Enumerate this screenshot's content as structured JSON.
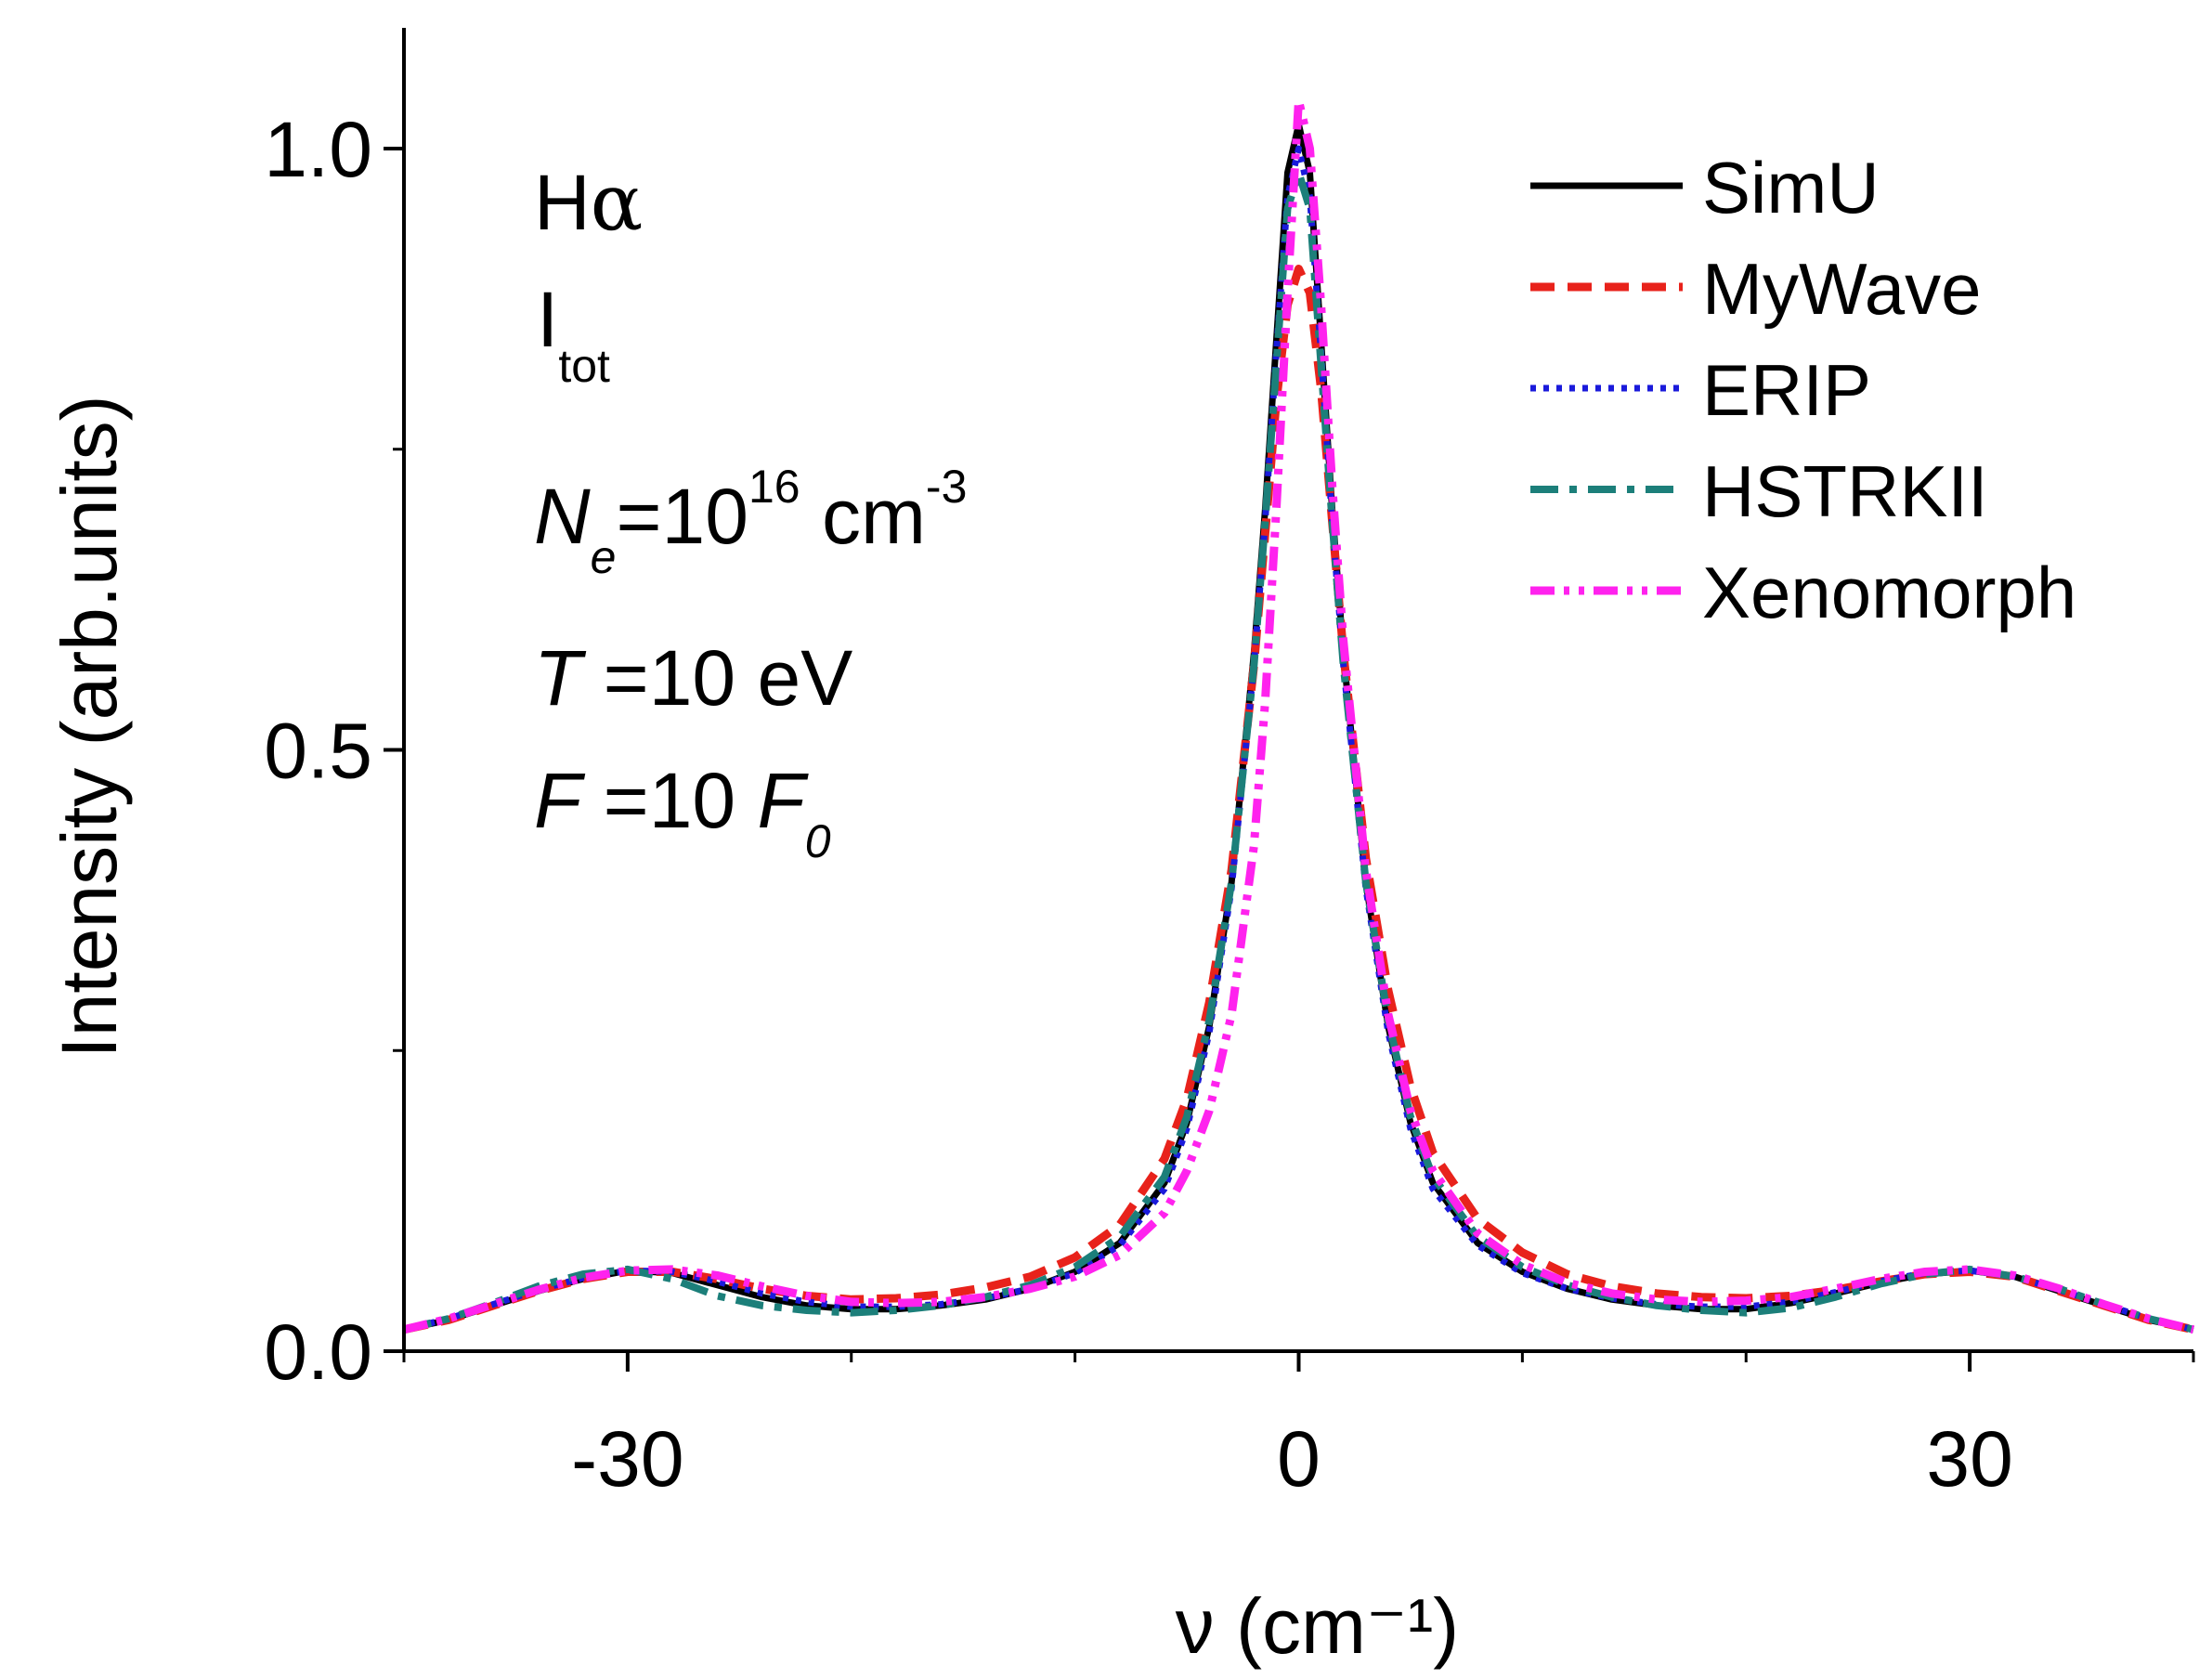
{
  "chart_data": {
    "type": "line",
    "xlabel": "ν (cm⁻¹)",
    "ylabel": "Intensity (arb.units)",
    "xlim": [
      -40,
      40
    ],
    "ylim": [
      0,
      1.1
    ],
    "xticks": [
      -30,
      0,
      30
    ],
    "xtick_labels": [
      "-30",
      "0",
      "30"
    ],
    "yticks": [
      0.0,
      0.5,
      1.0
    ],
    "ytick_labels": [
      "0.0",
      "0.5",
      "1.0"
    ],
    "legend_position": "top-right",
    "series": [
      {
        "name": "SimU",
        "color": "#000000",
        "style": "solid",
        "x": [
          -40,
          -38,
          -36,
          -34,
          -32,
          -30,
          -28,
          -26,
          -24,
          -22,
          -20,
          -18,
          -16,
          -14,
          -12,
          -10,
          -8,
          -6,
          -5,
          -4,
          -3,
          -2,
          -1.5,
          -1,
          -0.5,
          0,
          0.5,
          1,
          1.5,
          2,
          3,
          4,
          5,
          6,
          8,
          10,
          12,
          14,
          16,
          18,
          20,
          22,
          24,
          26,
          28,
          30,
          32,
          34,
          36,
          38,
          40
        ],
        "y": [
          0.018,
          0.026,
          0.038,
          0.05,
          0.06,
          0.067,
          0.065,
          0.055,
          0.045,
          0.038,
          0.035,
          0.035,
          0.038,
          0.043,
          0.052,
          0.066,
          0.09,
          0.14,
          0.19,
          0.27,
          0.39,
          0.58,
          0.7,
          0.84,
          0.98,
          1.02,
          0.98,
          0.84,
          0.7,
          0.58,
          0.39,
          0.27,
          0.19,
          0.14,
          0.09,
          0.066,
          0.052,
          0.043,
          0.038,
          0.035,
          0.035,
          0.04,
          0.048,
          0.057,
          0.064,
          0.067,
          0.062,
          0.05,
          0.038,
          0.026,
          0.018
        ]
      },
      {
        "name": "MyWave",
        "color": "#e8221b",
        "style": "dashed",
        "x": [
          -40,
          -38,
          -36,
          -34,
          -32,
          -30,
          -28,
          -26,
          -24,
          -22,
          -20,
          -18,
          -16,
          -14,
          -12,
          -10,
          -8,
          -6,
          -5,
          -4,
          -3,
          -2,
          -1.5,
          -1,
          -0.5,
          0,
          0.5,
          1,
          1.5,
          2,
          3,
          4,
          5,
          6,
          8,
          10,
          12,
          14,
          16,
          18,
          20,
          22,
          24,
          26,
          28,
          30,
          32,
          34,
          36,
          38,
          40
        ],
        "y": [
          0.018,
          0.026,
          0.038,
          0.05,
          0.06,
          0.066,
          0.066,
          0.06,
          0.052,
          0.046,
          0.043,
          0.044,
          0.047,
          0.053,
          0.062,
          0.078,
          0.105,
          0.16,
          0.21,
          0.29,
          0.4,
          0.57,
          0.68,
          0.79,
          0.87,
          0.9,
          0.88,
          0.8,
          0.69,
          0.58,
          0.41,
          0.3,
          0.22,
          0.165,
          0.11,
          0.082,
          0.064,
          0.054,
          0.048,
          0.045,
          0.044,
          0.046,
          0.051,
          0.058,
          0.064,
          0.066,
          0.062,
          0.05,
          0.038,
          0.026,
          0.018
        ]
      },
      {
        "name": "ERIP",
        "color": "#1a1adb",
        "style": "dotted",
        "x": [
          -40,
          -38,
          -36,
          -34,
          -32,
          -30,
          -28,
          -26,
          -24,
          -22,
          -20,
          -18,
          -16,
          -14,
          -12,
          -10,
          -8,
          -6,
          -5,
          -4,
          -3,
          -2,
          -1.5,
          -1,
          -0.5,
          0,
          0.5,
          1,
          1.5,
          2,
          3,
          4,
          5,
          6,
          8,
          10,
          12,
          14,
          16,
          18,
          20,
          22,
          24,
          26,
          28,
          30,
          32,
          34,
          36,
          38,
          40
        ],
        "y": [
          0.018,
          0.027,
          0.039,
          0.051,
          0.061,
          0.067,
          0.066,
          0.058,
          0.048,
          0.041,
          0.037,
          0.037,
          0.039,
          0.044,
          0.052,
          0.065,
          0.088,
          0.135,
          0.185,
          0.265,
          0.385,
          0.57,
          0.69,
          0.83,
          0.96,
          1.0,
          0.96,
          0.83,
          0.69,
          0.57,
          0.385,
          0.265,
          0.185,
          0.135,
          0.088,
          0.065,
          0.052,
          0.044,
          0.039,
          0.037,
          0.037,
          0.041,
          0.049,
          0.058,
          0.065,
          0.067,
          0.062,
          0.051,
          0.039,
          0.027,
          0.018
        ]
      },
      {
        "name": "HSTRKII",
        "color": "#1c7f7a",
        "style": "dashdot",
        "x": [
          -40,
          -38,
          -36,
          -34,
          -32,
          -30,
          -28,
          -26,
          -24,
          -22,
          -20,
          -18,
          -16,
          -14,
          -12,
          -10,
          -8,
          -6,
          -5,
          -4,
          -3,
          -2,
          -1.5,
          -1,
          -0.5,
          0,
          0.5,
          1,
          1.5,
          2,
          3,
          4,
          5,
          6,
          8,
          10,
          12,
          14,
          16,
          18,
          20,
          22,
          24,
          26,
          28,
          30,
          32,
          34,
          36,
          38,
          40
        ],
        "y": [
          0.018,
          0.027,
          0.04,
          0.054,
          0.064,
          0.068,
          0.06,
          0.046,
          0.038,
          0.034,
          0.032,
          0.034,
          0.038,
          0.045,
          0.055,
          0.07,
          0.095,
          0.145,
          0.195,
          0.275,
          0.39,
          0.57,
          0.69,
          0.82,
          0.95,
          0.98,
          0.95,
          0.82,
          0.69,
          0.57,
          0.39,
          0.275,
          0.195,
          0.145,
          0.095,
          0.07,
          0.055,
          0.045,
          0.038,
          0.034,
          0.032,
          0.036,
          0.045,
          0.056,
          0.064,
          0.068,
          0.062,
          0.052,
          0.039,
          0.027,
          0.018
        ]
      },
      {
        "name": "Xenomorph",
        "color": "#ff22ee",
        "style": "dashdotdot",
        "x": [
          -40,
          -38,
          -36,
          -34,
          -32,
          -30,
          -28,
          -26,
          -24,
          -22,
          -20,
          -18,
          -16,
          -14,
          -12,
          -10,
          -8,
          -6,
          -5,
          -4,
          -3,
          -2,
          -1.5,
          -1,
          -0.5,
          0,
          0.5,
          1,
          1.5,
          2,
          3,
          4,
          5,
          6,
          8,
          10,
          12,
          14,
          16,
          18,
          20,
          22,
          24,
          26,
          28,
          30,
          32,
          34,
          36,
          38,
          40
        ],
        "y": [
          0.018,
          0.027,
          0.039,
          0.051,
          0.061,
          0.067,
          0.068,
          0.063,
          0.054,
          0.046,
          0.041,
          0.04,
          0.041,
          0.045,
          0.052,
          0.062,
          0.08,
          0.115,
          0.15,
          0.2,
          0.28,
          0.42,
          0.54,
          0.7,
          0.88,
          1.04,
          1.0,
          0.87,
          0.72,
          0.59,
          0.4,
          0.28,
          0.2,
          0.15,
          0.098,
          0.072,
          0.057,
          0.048,
          0.043,
          0.041,
          0.042,
          0.045,
          0.052,
          0.06,
          0.066,
          0.068,
          0.063,
          0.052,
          0.039,
          0.027,
          0.018
        ]
      }
    ],
    "annotations": {
      "line_label": "H",
      "line_label_greek": "α",
      "intensity_label": "I",
      "intensity_sub": "tot",
      "density_symbol": "N",
      "density_sub": "e",
      "density_eq": "=10",
      "density_exp": "16",
      "density_unit": " cm",
      "density_unit_exp": "-3",
      "temp_symbol": "T",
      "temp_value": " =10 eV",
      "field_symbol": "F",
      "field_value": " =10 ",
      "field_ref": "F",
      "field_ref_sub": "0"
    }
  }
}
